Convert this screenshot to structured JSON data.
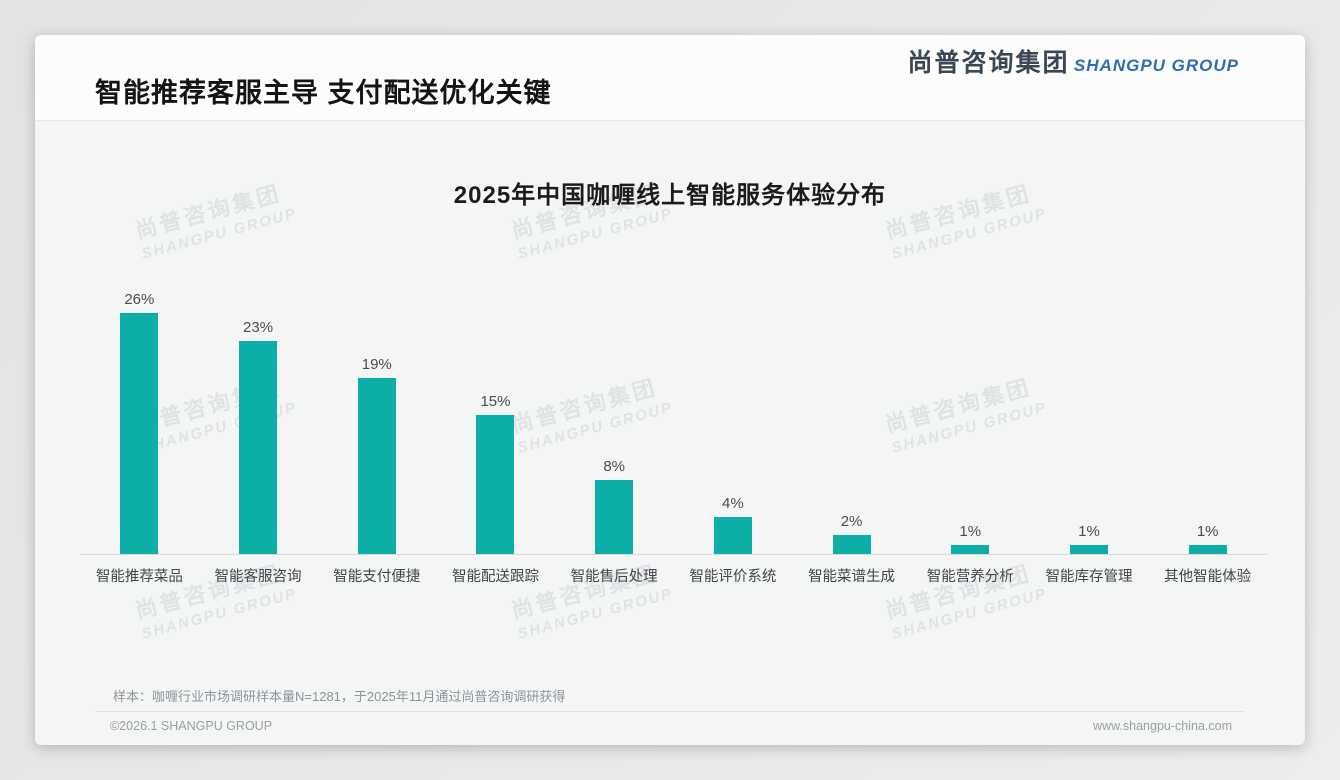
{
  "header": {
    "title": "智能推荐客服主导 支付配送优化关键",
    "logo": {
      "chinese": "尚普咨询集团",
      "english": "SHANGPU GROUP"
    }
  },
  "watermark": {
    "line1": "尚普咨询集团",
    "line2": "SHANGPU GROUP"
  },
  "chart_data": {
    "type": "bar",
    "title": "2025年中国咖喱线上智能服务体验分布",
    "categories": [
      "智能推荐菜品",
      "智能客服咨询",
      "智能支付便捷",
      "智能配送跟踪",
      "智能售后处理",
      "智能评价系统",
      "智能菜谱生成",
      "智能营养分析",
      "智能库存管理",
      "其他智能体验"
    ],
    "values": [
      26,
      23,
      19,
      15,
      8,
      4,
      2,
      1,
      1,
      1
    ],
    "value_labels": [
      "26%",
      "23%",
      "19%",
      "15%",
      "8%",
      "4%",
      "2%",
      "1%",
      "1%",
      "1%"
    ],
    "unit": "%",
    "bar_color": "#0CAEA7",
    "xlabel": "",
    "ylabel": "",
    "ylim": [
      0,
      28
    ],
    "grid": false,
    "legend": false
  },
  "footer": {
    "sample_note": "样本：咖喱行业市场调研样本量N=1281，于2025年11月通过尚普咨询调研获得",
    "copyright": "©2026.1 SHANGPU GROUP",
    "website": "www.shangpu-china.com"
  }
}
